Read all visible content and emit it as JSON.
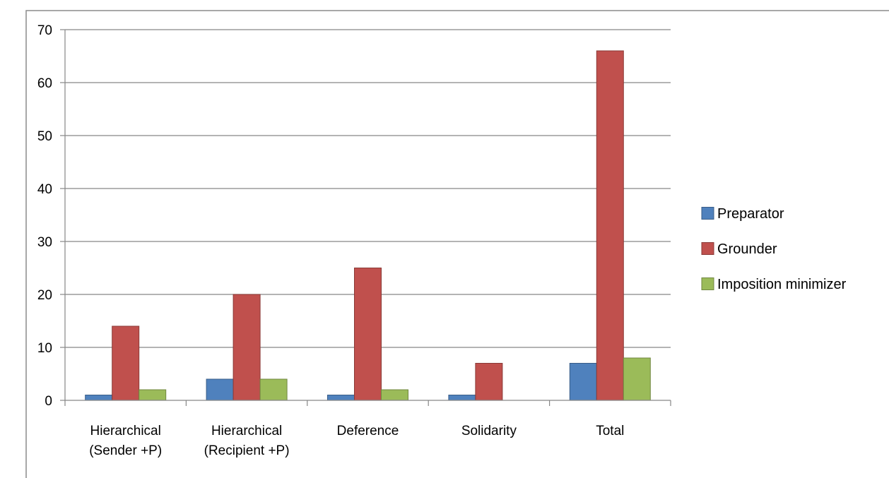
{
  "chart_data": {
    "type": "bar",
    "categories": [
      [
        "Hierarchical",
        "(Sender +P)"
      ],
      [
        "Hierarchical",
        "(Recipient +P)"
      ],
      [
        "Deference"
      ],
      [
        "Solidarity"
      ],
      [
        "Total"
      ]
    ],
    "series": [
      {
        "name": "Preparator",
        "color": "#4f81bd",
        "values": [
          1,
          4,
          1,
          1,
          7
        ]
      },
      {
        "name": "Grounder",
        "color": "#c0504d",
        "values": [
          14,
          20,
          25,
          7,
          66
        ]
      },
      {
        "name": "Imposition minimizer",
        "color": "#9bbb59",
        "values": [
          2,
          4,
          2,
          0,
          8
        ]
      }
    ],
    "ylim": [
      0,
      70
    ],
    "yticks": [
      0,
      10,
      20,
      30,
      40,
      50,
      60,
      70
    ],
    "grid": true,
    "legend_position": "right",
    "title": "",
    "xlabel": "",
    "ylabel": ""
  }
}
